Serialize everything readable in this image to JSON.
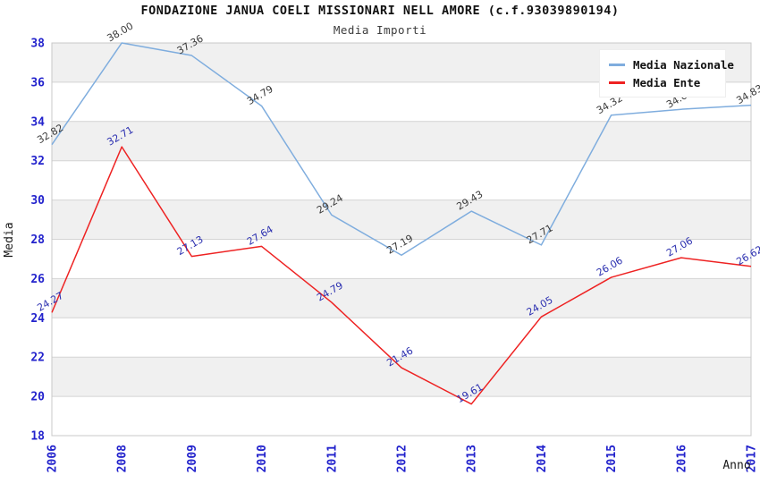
{
  "header": {
    "title": "FONDAZIONE JANUA COELI MISSIONARI NELL AMORE (c.f.93039890194)",
    "subtitle": "Media Importi"
  },
  "axes": {
    "y_label": "Media",
    "x_label": "Anno"
  },
  "colors": {
    "nazionale_line": "#7fadde",
    "ente_line": "#ee2222",
    "tick_label": "#2222cc",
    "nazionale_point_label": "#3a3a3a",
    "ente_point_label": "#2b2fb0",
    "band_fill": "#f0f0f0",
    "gridline": "#d4d4d4",
    "plot_border": "#c8c8c8",
    "title_text": "#111111",
    "axis_title_text": "#1a1a1a"
  },
  "chart_data": {
    "type": "line",
    "title": "FONDAZIONE JANUA COELI MISSIONARI NELL AMORE (c.f.93039890194)",
    "subtitle": "Media Importi",
    "xlabel": "Anno",
    "ylabel": "Media",
    "categories": [
      "2006",
      "2008",
      "2009",
      "2010",
      "2011",
      "2012",
      "2013",
      "2014",
      "2015",
      "2016",
      "2017"
    ],
    "series": [
      {
        "name": "Media Nazionale",
        "color": "#7fadde",
        "label_color": "#3a3a3a",
        "values": [
          32.82,
          38.0,
          37.36,
          34.79,
          29.24,
          27.19,
          29.43,
          27.71,
          34.32,
          34.62,
          34.83
        ]
      },
      {
        "name": "Media Ente",
        "color": "#ee2222",
        "label_color": "#2b2fb0",
        "values": [
          24.27,
          32.71,
          27.13,
          27.64,
          24.79,
          21.46,
          19.61,
          24.05,
          26.06,
          27.06,
          26.62
        ]
      }
    ],
    "ylim": [
      18,
      38
    ],
    "ytick_step": 2,
    "grid": "horizontal-with-alternating-bands",
    "legend_position": "top-right",
    "point_label_format": "0.00",
    "point_label_rotation_deg": -30,
    "xtick_rotation_deg": -90
  }
}
